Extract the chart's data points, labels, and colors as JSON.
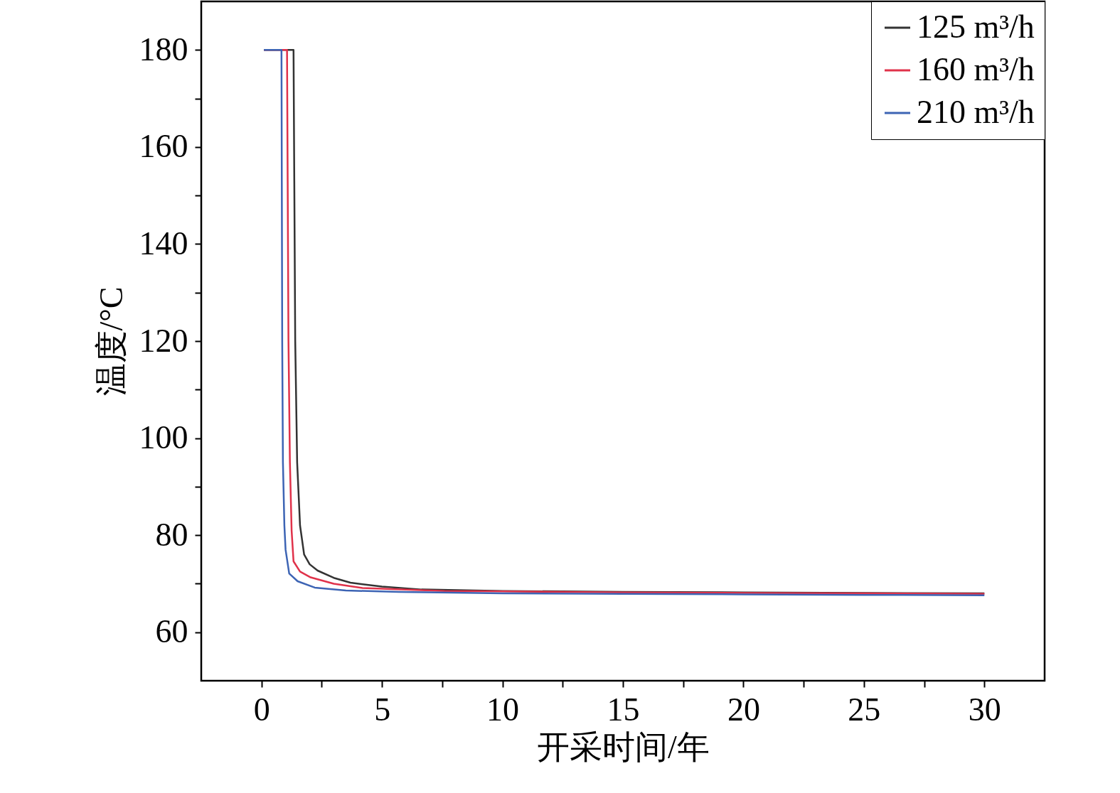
{
  "chart_data": {
    "type": "line",
    "xlabel": "开采时间/年",
    "ylabel": "温度/°C",
    "xlim": [
      -2.5,
      32.5
    ],
    "ylim": [
      50,
      190
    ],
    "xticks": [
      0,
      {
        "value": 2.5,
        "label": null
      },
      5,
      {
        "value": 7.5,
        "label": null
      },
      10,
      {
        "value": 12.5,
        "label": null
      },
      15,
      {
        "value": 17.5,
        "label": null
      },
      20,
      {
        "value": 22.5,
        "label": null
      },
      25,
      {
        "value": 27.5,
        "label": null
      },
      30
    ],
    "yticks": [
      60,
      {
        "value": 70,
        "label": null
      },
      80,
      {
        "value": 90,
        "label": null
      },
      100,
      {
        "value": 110,
        "label": null
      },
      120,
      {
        "value": 130,
        "label": null
      },
      140,
      {
        "value": 150,
        "label": null
      },
      160,
      {
        "value": 170,
        "label": null
      },
      180
    ],
    "grid": false,
    "legend": "top right",
    "line_style": "solid",
    "series": [
      {
        "name": "125 m³/h",
        "color": "#333333",
        "x": [
          0.1,
          1.33,
          1.4,
          1.48,
          1.6,
          1.77,
          2.0,
          2.33,
          3.0,
          3.69,
          5.0,
          6.64,
          10,
          15,
          20,
          25,
          30
        ],
        "values": [
          180,
          180,
          120,
          95,
          82,
          76,
          74,
          72.7,
          71.2,
          70.2,
          69.4,
          68.8,
          68.5,
          68.3,
          68.2,
          68.1,
          68.0
        ]
      },
      {
        "name": "160 m³/h",
        "color": "#e0324a",
        "x": [
          0.1,
          1.06,
          1.12,
          1.18,
          1.25,
          1.33,
          1.6,
          2.04,
          3.0,
          4.19,
          7.6,
          10,
          15,
          20,
          25,
          30
        ],
        "values": [
          180,
          180,
          120,
          95,
          81,
          74.6,
          72.5,
          71.3,
          70.0,
          69.1,
          68.5,
          68.4,
          68.2,
          68.1,
          68.0,
          67.9
        ]
      },
      {
        "name": "210 m³/h",
        "color": "#3d64b4",
        "x": [
          0.1,
          0.83,
          0.86,
          0.89,
          0.95,
          1.0,
          1.15,
          1.5,
          2.21,
          3.5,
          5.7,
          10,
          15,
          20,
          25,
          30
        ],
        "values": [
          180,
          180,
          120,
          95,
          82,
          77,
          72.1,
          70.5,
          69.2,
          68.6,
          68.3,
          68.0,
          67.9,
          67.8,
          67.7,
          67.6
        ]
      }
    ]
  }
}
